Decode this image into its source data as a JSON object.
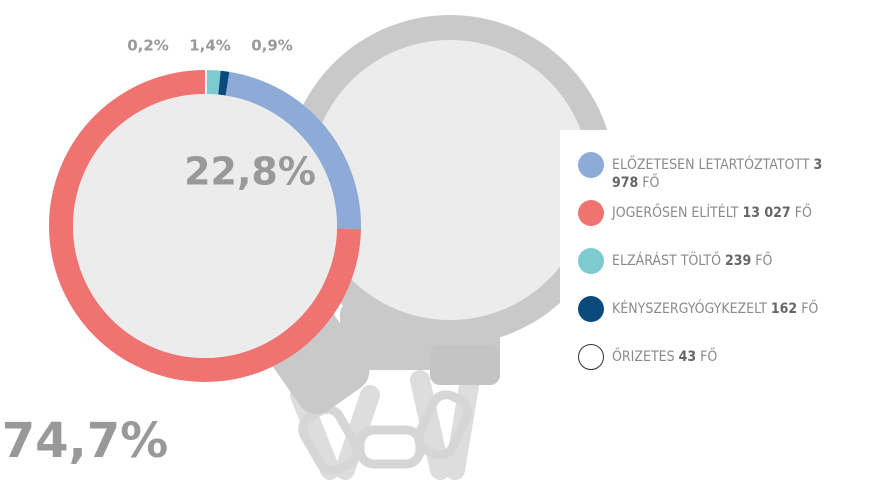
{
  "chart_data": {
    "type": "donut",
    "categories": [
      "ELŐZETESEN LETARTÓZTATOTT",
      "JOGERŐSEN ELÍTÉLT",
      "ELZÁRÁST TÖLTŐ",
      "KÉNYSZERGYÓGYKEZELT",
      "ŐRIZETES"
    ],
    "values": [
      22.8,
      74.7,
      1.4,
      0.9,
      0.2
    ],
    "value_labels": [
      "22,8%",
      "74,7%",
      "1,4%",
      "0,9%",
      "0,2%"
    ],
    "count_labels": [
      "3 978",
      "13 027",
      "239",
      "162",
      "43"
    ],
    "unit": "FŐ",
    "colors": [
      "#8eabd8",
      "#ef7370",
      "#7ecbcf",
      "#0b4a7d",
      "#ffffff"
    ]
  }
}
